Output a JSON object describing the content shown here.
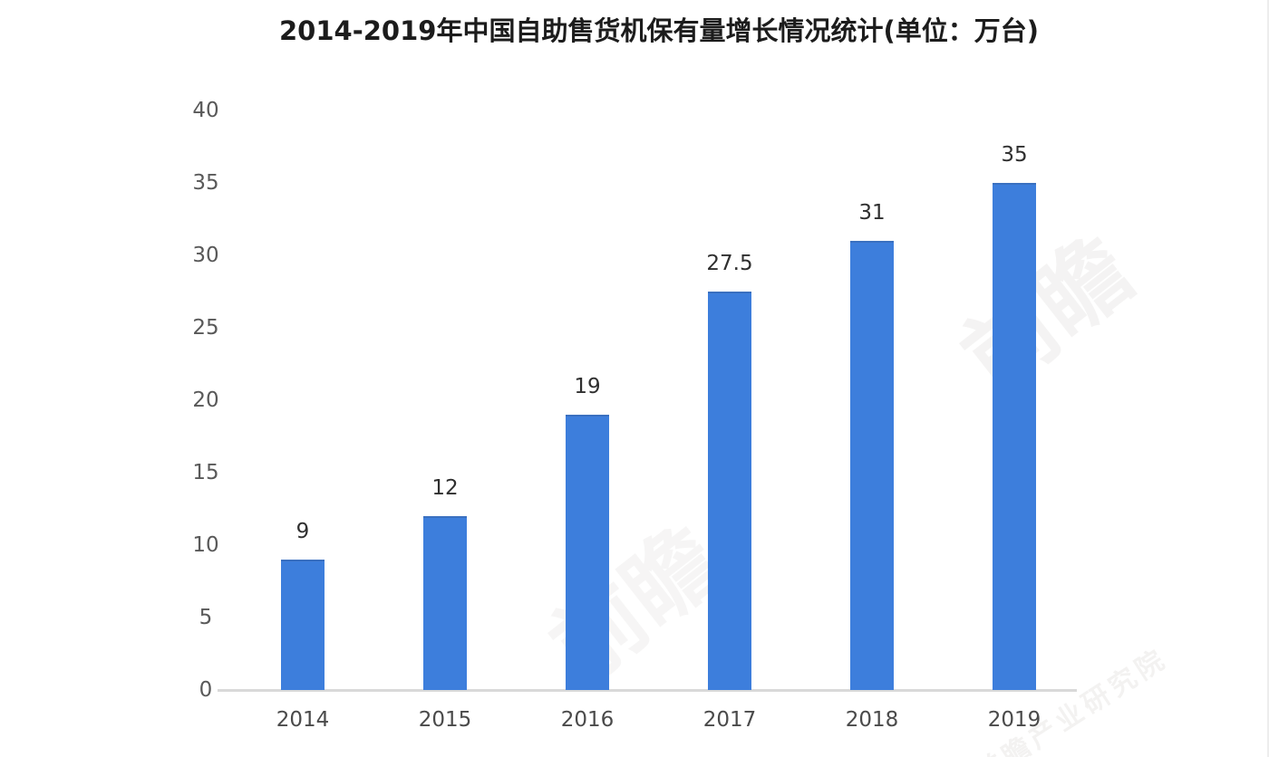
{
  "chart_data": {
    "type": "bar",
    "title": "2014-2019年中国自助售货机保有量增长情况统计(单位：万台)",
    "categories": [
      "2014",
      "2015",
      "2016",
      "2017",
      "2018",
      "2019"
    ],
    "values": [
      9,
      12,
      19,
      27.5,
      31,
      35
    ],
    "value_labels": [
      "9",
      "12",
      "19",
      "27.5",
      "31",
      "35"
    ],
    "unit": "万台",
    "xlabel": "",
    "ylabel": "",
    "ylim": [
      0,
      40
    ],
    "yticks": [
      0,
      5,
      10,
      15,
      20,
      25,
      30,
      35,
      40
    ],
    "grid": false,
    "legend_position": "none",
    "bar_color": "#3d7edc",
    "bar_top_edge_color": "#3a70c0",
    "axis_line_color": "#d9d9d9",
    "title_color": "#1c1c1c",
    "ytick_label_color": "#595959",
    "xtick_label_color": "#4a4a4a",
    "value_label_color": "#2f2f2f",
    "background_color": "#ffffff"
  },
  "watermark": {
    "ghost": "前瞻",
    "strip": "前瞻产业研究院"
  }
}
